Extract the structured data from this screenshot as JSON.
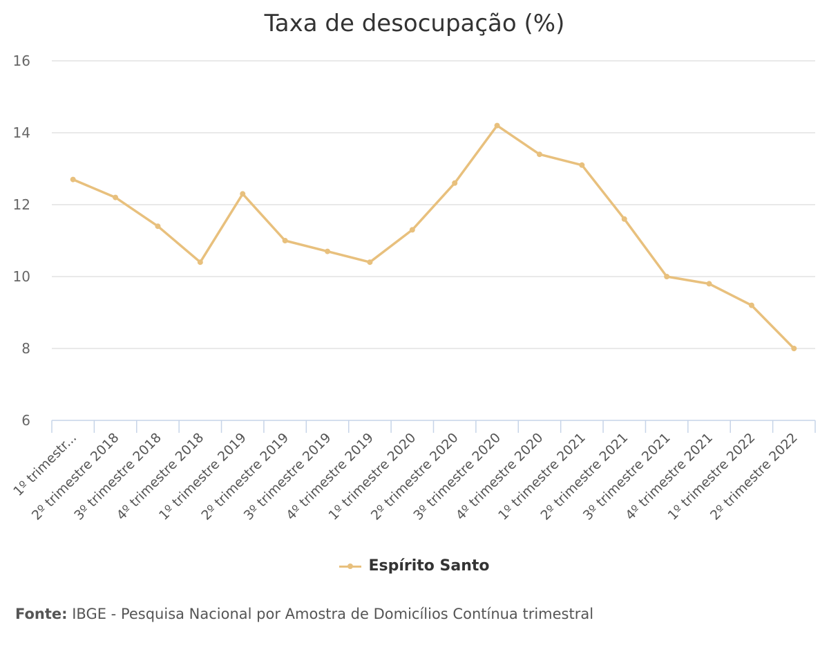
{
  "chart_data": {
    "type": "line",
    "title": "Taxa de desocupação (%)",
    "xlabel": "",
    "ylabel": "",
    "ylim": [
      6,
      16
    ],
    "yticks": [
      6,
      8,
      10,
      12,
      14,
      16
    ],
    "grid": true,
    "legend_position": "bottom",
    "categories": [
      "1º trimestr...",
      "2º trimestre 2018",
      "3º trimestre 2018",
      "4º trimestre 2018",
      "1º trimestre 2019",
      "2º trimestre 2019",
      "3º trimestre 2019",
      "4º trimestre 2019",
      "1º trimestre 2020",
      "2º trimestre 2020",
      "3º trimestre 2020",
      "4º trimestre 2020",
      "1º trimestre 2021",
      "2º trimestre 2021",
      "3º trimestre 2021",
      "4º trimestre 2021",
      "1º trimestre 2022",
      "2º trimestre 2022"
    ],
    "series": [
      {
        "name": "Espírito Santo",
        "color": "#e8c07d",
        "values": [
          12.7,
          12.2,
          11.4,
          10.4,
          12.3,
          11.0,
          10.7,
          10.4,
          11.3,
          12.6,
          14.2,
          13.4,
          13.1,
          11.6,
          10.0,
          9.8,
          9.2,
          8.0
        ]
      }
    ]
  },
  "source": {
    "label": "Fonte:",
    "text": " IBGE - Pesquisa Nacional por Amostra de Domicílios Contínua trimestral"
  }
}
